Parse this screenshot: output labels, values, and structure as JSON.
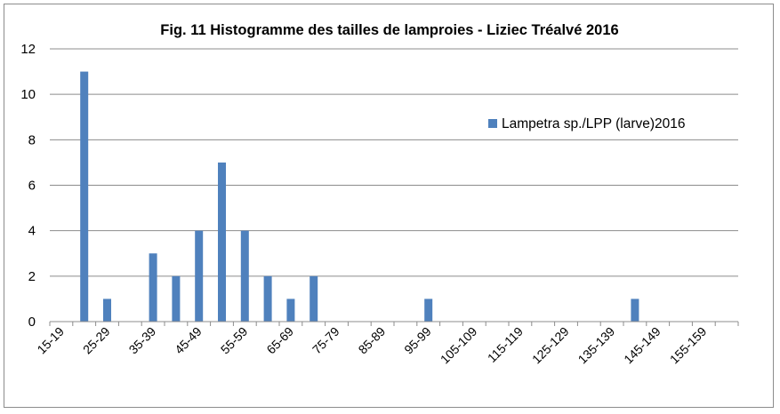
{
  "chart_data": {
    "type": "bar",
    "title": "Fig. 11 Histogramme des tailles de lamproies - Liziec Tréalvé 2016",
    "xlabel": "",
    "ylabel": "",
    "ylim": [
      0,
      12
    ],
    "yticks": [
      "0",
      "2",
      "4",
      "6",
      "8",
      "10",
      "12"
    ],
    "categories": [
      "15-19",
      "20-24",
      "25-29",
      "30-34",
      "35-39",
      "40-44",
      "45-49",
      "50-54",
      "55-59",
      "60-64",
      "65-69",
      "70-74",
      "75-79",
      "80-84",
      "85-89",
      "90-94",
      "95-99",
      "100-104",
      "105-109",
      "110-114",
      "115-119",
      "120-124",
      "125-129",
      "130-134",
      "135-139",
      "140-144",
      "145-149",
      "150-154",
      "155-159",
      "160-164"
    ],
    "shown_tick_labels": [
      "15-19",
      "25-29",
      "35-39",
      "45-49",
      "55-59",
      "65-69",
      "75-79",
      "85-89",
      "95-99",
      "105-109",
      "115-119",
      "125-129",
      "135-139",
      "145-149",
      "155-159"
    ],
    "series": [
      {
        "name": "Lampetra sp./LPP (larve)2016",
        "color": "#4f81bd",
        "values": [
          0,
          11,
          1,
          0,
          3,
          2,
          4,
          7,
          4,
          2,
          1,
          2,
          0,
          0,
          0,
          0,
          1,
          0,
          0,
          0,
          0,
          0,
          0,
          0,
          0,
          1,
          0,
          0,
          0,
          0
        ]
      }
    ],
    "legend_position": "right",
    "grid": true
  }
}
